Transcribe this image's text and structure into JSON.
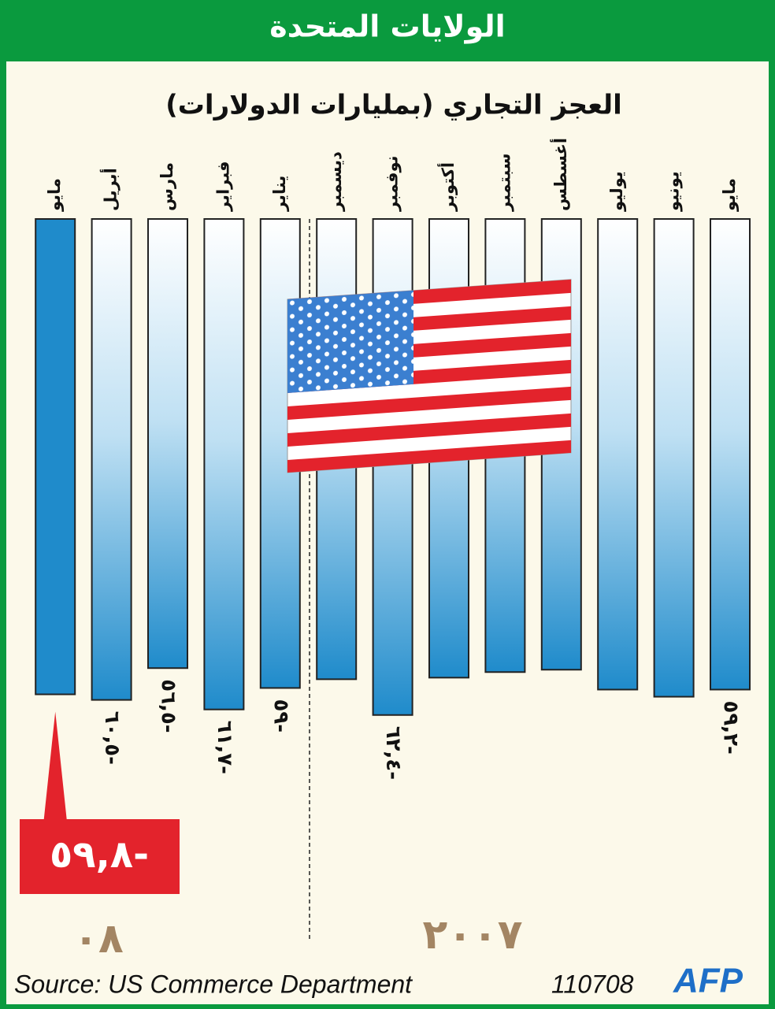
{
  "chart_data": {
    "type": "bar",
    "banner": "الولايات المتحدة",
    "title": "العجز التجاري (بمليارات الدولارات)",
    "categories": [
      "مايو",
      "يونيو",
      "يوليو",
      "أغسطس",
      "سبتمبر",
      "أكتوبر",
      "نوفمبر",
      "ديسمبر",
      "يناير",
      "فبراير",
      "مارس",
      "أبريل",
      "مايو"
    ],
    "values": [
      -59.2,
      -60.1,
      -59.2,
      -56.7,
      -57.0,
      -57.7,
      -62.4,
      -57.9,
      -59.0,
      -61.7,
      -56.5,
      -60.5,
      -59.8
    ],
    "value_labels": [
      "٥٩,٢-",
      null,
      null,
      null,
      null,
      null,
      "٦٢,٤-",
      null,
      "٥٩-",
      "٦١,٧-",
      "٥٦,٥-",
      "٦٠,٥-",
      "٥٩,٨-"
    ],
    "color": "#1f8bcb",
    "highlight_color": "#e3232c",
    "ylim": [
      0,
      -65
    ],
    "year_labels": [
      "٢٠٠٧",
      "٠٨"
    ],
    "source": "Source: US Commerce Department",
    "code": "110708",
    "logo": "AFP"
  }
}
